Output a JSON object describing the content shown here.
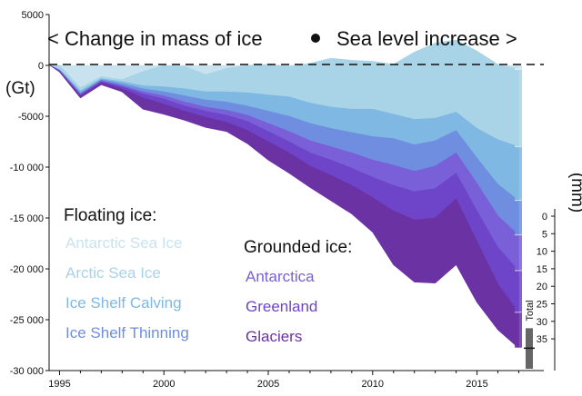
{
  "chart_data": {
    "type": "area",
    "title": "< Change in mass of ice ● Sea level increase >",
    "title_left": "< Change in mass of ice",
    "title_right": "Sea level increase >",
    "ylabel": "(Gt)",
    "ylabel_right": "(mm)",
    "ylim": [
      -30000,
      5000
    ],
    "xlim": [
      1994.5,
      2018.2
    ],
    "y_ticks": [
      5000,
      0,
      -5000,
      -10000,
      -15000,
      -20000,
      -25000,
      -30000
    ],
    "y_tick_labels": [
      "5000",
      "0",
      "-5000",
      "-10 000",
      "-15 000",
      "-20 000",
      "-25 000",
      "-30 000"
    ],
    "x_ticks": [
      1995,
      2000,
      2005,
      2010,
      2015
    ],
    "x_tick_labels": [
      "1995",
      "2000",
      "2005",
      "2010",
      "2015"
    ],
    "right_axis_ticks": [
      0,
      5,
      10,
      15,
      20,
      25,
      30,
      35
    ],
    "right_axis_tick_labels": [
      "0",
      "5",
      "10",
      "15",
      "20",
      "25",
      "30",
      "35"
    ],
    "right_axis_gt_per_mm": 362,
    "total_label": "Total",
    "years": [
      1994,
      1995,
      1996,
      1997,
      1998,
      1999,
      2000,
      2001,
      2002,
      2003,
      2004,
      2005,
      2006,
      2007,
      2008,
      2009,
      2010,
      2011,
      2012,
      2013,
      2014,
      2015,
      2016,
      2017
    ],
    "legend": {
      "floating_header": "Floating ice:",
      "grounded_header": "Grounded ice:",
      "floating": [
        "Antarctic Sea Ice",
        "Arctic Sea Ice",
        "Ice Shelf Calving",
        "Ice Shelf Thinning"
      ],
      "grounded": [
        "Antarctica",
        "Greenland",
        "Glaciers"
      ]
    },
    "series": [
      {
        "name": "Antarctic Sea Ice",
        "group": "floating",
        "color": "#c8e3ef",
        "cumulative_top": [
          0,
          0,
          -2200,
          -1100,
          -1400,
          -600,
          0,
          -100,
          -900,
          -300,
          0,
          100,
          -100,
          200,
          700,
          500,
          400,
          100,
          1300,
          2200,
          2500,
          1400,
          100,
          -400
        ]
      },
      {
        "name": "Arctic Sea Ice",
        "group": "floating",
        "color": "#a9d3e6",
        "cumulative_top": [
          0,
          -400,
          -2500,
          -1300,
          -1600,
          -2000,
          -2100,
          -2300,
          -2600,
          -2600,
          -2700,
          -2900,
          -3100,
          -3700,
          -4100,
          -4300,
          -4300,
          -4800,
          -5300,
          -5200,
          -4600,
          -6200,
          -7300,
          -8000
        ]
      },
      {
        "name": "Ice Shelf Calving",
        "group": "floating",
        "color": "#7fb8e2",
        "cumulative_top": [
          0,
          -450,
          -2700,
          -1400,
          -1800,
          -2300,
          -2600,
          -3000,
          -3400,
          -3600,
          -4000,
          -4500,
          -5000,
          -5700,
          -6200,
          -6600,
          -7000,
          -7200,
          -7800,
          -7400,
          -6400,
          -9100,
          -11700,
          -13300
        ]
      },
      {
        "name": "Ice Shelf Thinning",
        "group": "floating",
        "color": "#6f8ee0",
        "cumulative_top": [
          0,
          -500,
          -2800,
          -1500,
          -2000,
          -2600,
          -3000,
          -3600,
          -4100,
          -4400,
          -4900,
          -5700,
          -6500,
          -7400,
          -8000,
          -8600,
          -9300,
          -9800,
          -10400,
          -9900,
          -8600,
          -11600,
          -14800,
          -16700
        ]
      },
      {
        "name": "Antarctica",
        "group": "grounded",
        "color": "#7a60d8",
        "cumulative_top": [
          0,
          -550,
          -2900,
          -1600,
          -2100,
          -2800,
          -3300,
          -4000,
          -4500,
          -4900,
          -5500,
          -6500,
          -7500,
          -8600,
          -9300,
          -10100,
          -11000,
          -11800,
          -12400,
          -12100,
          -10600,
          -14300,
          -17900,
          -20200
        ]
      },
      {
        "name": "Greenland",
        "group": "grounded",
        "color": "#6e45c8",
        "cumulative_top": [
          0,
          -600,
          -3000,
          -1700,
          -2300,
          -3200,
          -3800,
          -4500,
          -5100,
          -5600,
          -6400,
          -7500,
          -8600,
          -9900,
          -10800,
          -11800,
          -13000,
          -14300,
          -15200,
          -15000,
          -13100,
          -17300,
          -21500,
          -24300
        ]
      },
      {
        "name": "Glaciers",
        "group": "grounded",
        "color": "#6b32a3",
        "cumulative_top": [
          0,
          -650,
          -3200,
          -1900,
          -2600,
          -4300,
          -4800,
          -5400,
          -6100,
          -6500,
          -7700,
          -9300,
          -10600,
          -12000,
          -13300,
          -14600,
          -16400,
          -19600,
          -21300,
          -21400,
          -19600,
          -23300,
          -26000,
          -27800
        ]
      }
    ]
  }
}
